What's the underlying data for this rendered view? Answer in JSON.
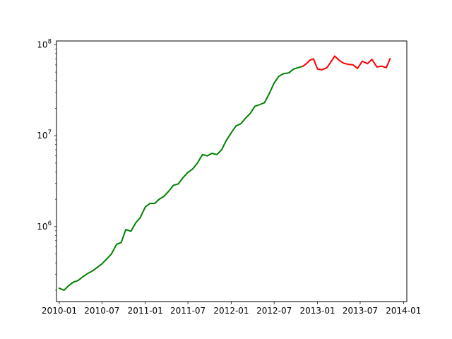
{
  "chart_data": {
    "type": "line",
    "title": "",
    "xlabel": "",
    "ylabel": "",
    "xscale": "date",
    "yscale": "log",
    "xlim": [
      "2009-12-20",
      "2014-01-15"
    ],
    "ylim": [
      150000,
      110000000
    ],
    "grid": false,
    "legend": "none",
    "x_ticks": [
      {
        "date": "2010-01-01",
        "label": "2010-01"
      },
      {
        "date": "2010-07-01",
        "label": "2010-07"
      },
      {
        "date": "2011-01-01",
        "label": "2011-01"
      },
      {
        "date": "2011-07-01",
        "label": "2011-07"
      },
      {
        "date": "2012-01-01",
        "label": "2012-01"
      },
      {
        "date": "2012-07-01",
        "label": "2012-07"
      },
      {
        "date": "2013-01-01",
        "label": "2013-01"
      },
      {
        "date": "2013-07-01",
        "label": "2013-07"
      },
      {
        "date": "2014-01-01",
        "label": "2014-01"
      }
    ],
    "y_ticks": [
      {
        "value": 1000000,
        "base": "10",
        "exp": "6"
      },
      {
        "value": 10000000,
        "base": "10",
        "exp": "7"
      },
      {
        "value": 100000000,
        "base": "10",
        "exp": "8"
      }
    ],
    "series": [
      {
        "color": "#008000",
        "points": [
          [
            "2010-01-01",
            210000
          ],
          [
            "2010-01-21",
            200000
          ],
          [
            "2010-02-10",
            225000
          ],
          [
            "2010-03-01",
            245000
          ],
          [
            "2010-03-21",
            255000
          ],
          [
            "2010-04-10",
            280000
          ],
          [
            "2010-05-01",
            305000
          ],
          [
            "2010-05-21",
            325000
          ],
          [
            "2010-06-10",
            355000
          ],
          [
            "2010-07-01",
            390000
          ],
          [
            "2010-07-21",
            440000
          ],
          [
            "2010-08-10",
            500000
          ],
          [
            "2010-09-01",
            640000
          ],
          [
            "2010-09-21",
            670000
          ],
          [
            "2010-10-10",
            930000
          ],
          [
            "2010-11-01",
            890000
          ],
          [
            "2010-11-21",
            1100000
          ],
          [
            "2010-12-10",
            1250000
          ],
          [
            "2011-01-01",
            1650000
          ],
          [
            "2011-01-21",
            1800000
          ],
          [
            "2011-02-10",
            1800000
          ],
          [
            "2011-03-01",
            2000000
          ],
          [
            "2011-03-21",
            2150000
          ],
          [
            "2011-04-10",
            2450000
          ],
          [
            "2011-05-01",
            2850000
          ],
          [
            "2011-05-21",
            2950000
          ],
          [
            "2011-06-10",
            3450000
          ],
          [
            "2011-07-01",
            3950000
          ],
          [
            "2011-07-21",
            4300000
          ],
          [
            "2011-08-10",
            5000000
          ],
          [
            "2011-09-01",
            6200000
          ],
          [
            "2011-09-21",
            6000000
          ],
          [
            "2011-10-10",
            6400000
          ],
          [
            "2011-11-01",
            6200000
          ],
          [
            "2011-11-21",
            7000000
          ],
          [
            "2011-12-10",
            8800000
          ],
          [
            "2012-01-01",
            10800000
          ],
          [
            "2012-01-21",
            12800000
          ],
          [
            "2012-02-10",
            13500000
          ],
          [
            "2012-03-01",
            15500000
          ],
          [
            "2012-03-21",
            17500000
          ],
          [
            "2012-04-10",
            21000000
          ],
          [
            "2012-05-01",
            22000000
          ],
          [
            "2012-05-21",
            23000000
          ],
          [
            "2012-06-10",
            29000000
          ],
          [
            "2012-07-01",
            38000000
          ],
          [
            "2012-07-21",
            45000000
          ],
          [
            "2012-08-10",
            48000000
          ],
          [
            "2012-09-01",
            49000000
          ],
          [
            "2012-09-21",
            54000000
          ],
          [
            "2012-10-10",
            56000000
          ],
          [
            "2012-10-31",
            58000000
          ]
        ]
      },
      {
        "color": "#ff0000",
        "points": [
          [
            "2012-10-31",
            58000000
          ],
          [
            "2012-11-15",
            62000000
          ],
          [
            "2012-12-01",
            68000000
          ],
          [
            "2012-12-15",
            70000000
          ],
          [
            "2013-01-01",
            54000000
          ],
          [
            "2013-01-20",
            53000000
          ],
          [
            "2013-02-10",
            56000000
          ],
          [
            "2013-03-01",
            66000000
          ],
          [
            "2013-03-15",
            75000000
          ],
          [
            "2013-04-01",
            68000000
          ],
          [
            "2013-04-20",
            63000000
          ],
          [
            "2013-05-10",
            61000000
          ],
          [
            "2013-06-01",
            60000000
          ],
          [
            "2013-06-20",
            55000000
          ],
          [
            "2013-07-10",
            66000000
          ],
          [
            "2013-08-01",
            62000000
          ],
          [
            "2013-08-20",
            69000000
          ],
          [
            "2013-09-10",
            57000000
          ],
          [
            "2013-10-01",
            58000000
          ],
          [
            "2013-10-20",
            56000000
          ],
          [
            "2013-11-05",
            70000000
          ]
        ]
      }
    ]
  }
}
